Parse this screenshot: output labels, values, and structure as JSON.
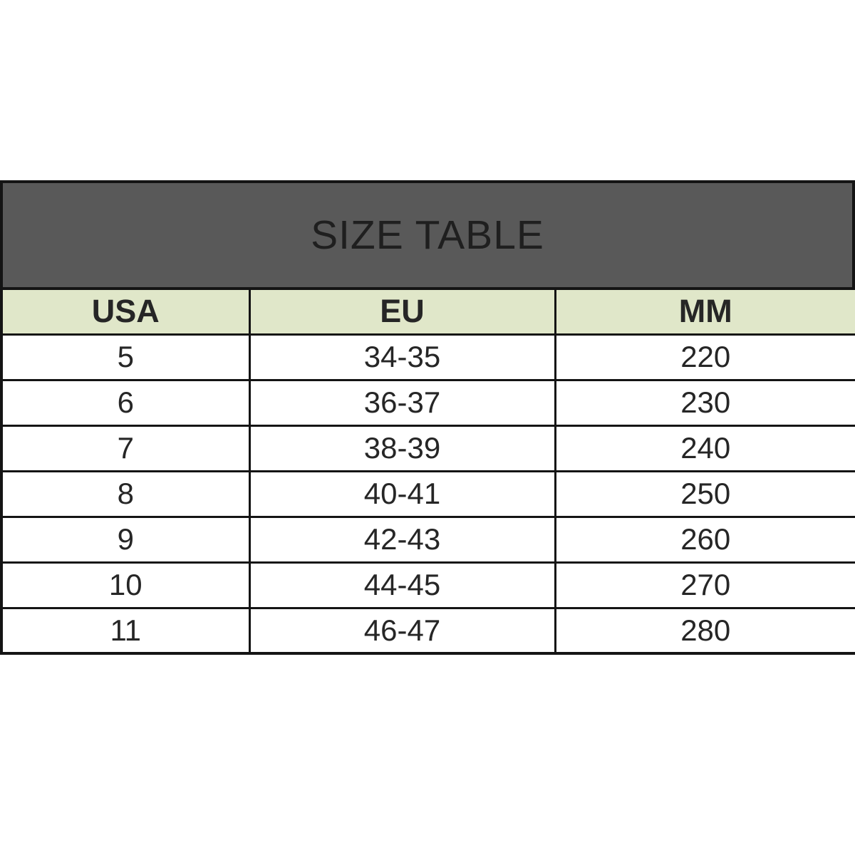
{
  "banner": {
    "title": "SIZE TABLE",
    "background": "#595959",
    "text_color": "#1f1f1f"
  },
  "table": {
    "header_background": "#e0e7c9",
    "border_color": "#141414",
    "columns": [
      "USA",
      "EU",
      "MM"
    ],
    "rows": [
      [
        "5",
        "34-35",
        "220"
      ],
      [
        "6",
        "36-37",
        "230"
      ],
      [
        "7",
        "38-39",
        "240"
      ],
      [
        "8",
        "40-41",
        "250"
      ],
      [
        "9",
        "42-43",
        "260"
      ],
      [
        "10",
        "44-45",
        "270"
      ],
      [
        "11",
        "46-47",
        "280"
      ]
    ]
  }
}
